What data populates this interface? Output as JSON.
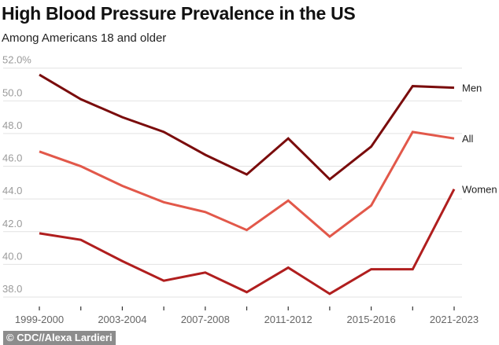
{
  "chart_data": {
    "type": "line",
    "title": "High Blood Pressure Prevalence in the US",
    "subtitle": "Among Americans 18 and older",
    "categories": [
      "1999-2000",
      "",
      "2003-2004",
      "",
      "2007-2008",
      "",
      "2011-2012",
      "",
      "2015-2016",
      "",
      "2021-2023"
    ],
    "y_ticks": [
      "52.0%",
      "50.0",
      "48.0",
      "46.0",
      "44.0",
      "42.0",
      "40.0",
      "38.0"
    ],
    "ylim": [
      38,
      52
    ],
    "grid": true,
    "legend": "direct labels at line ends (right)",
    "series": [
      {
        "name": "Men",
        "color": "#7a0c0c",
        "values": [
          51.6,
          50.1,
          49.0,
          48.1,
          46.7,
          45.5,
          47.7,
          45.2,
          47.2,
          50.9,
          50.8
        ]
      },
      {
        "name": "All",
        "color": "#e2584a",
        "values": [
          46.9,
          46.0,
          44.8,
          43.8,
          43.2,
          42.1,
          43.9,
          41.7,
          43.6,
          48.1,
          47.7
        ]
      },
      {
        "name": "Women",
        "color": "#b01e1e",
        "values": [
          41.9,
          41.5,
          40.2,
          39.0,
          39.5,
          38.3,
          39.8,
          38.2,
          39.7,
          39.7,
          44.6
        ]
      }
    ]
  },
  "credit": "© CDC//Alexa Lardieri"
}
